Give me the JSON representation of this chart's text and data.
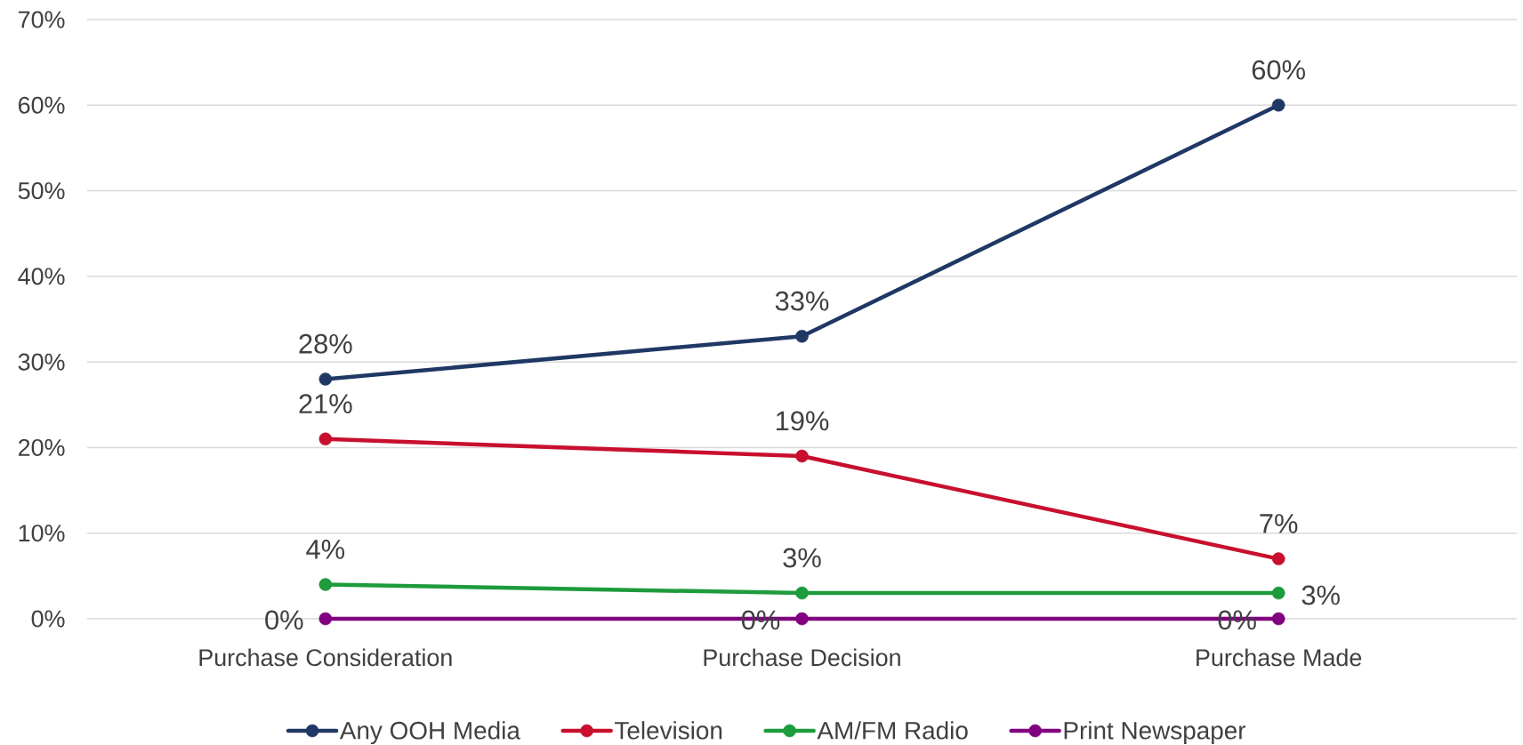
{
  "chart_data": {
    "type": "line",
    "categories": [
      "Purchase Consideration",
      "Purchase Decision",
      "Purchase Made"
    ],
    "series": [
      {
        "name": "Any OOH Media",
        "color": "#1f3864",
        "values": [
          28,
          33,
          60
        ],
        "value_labels": [
          "28%",
          "33%",
          "60%"
        ]
      },
      {
        "name": "Television",
        "color": "#c8102e",
        "values": [
          21,
          19,
          7
        ],
        "value_labels": [
          "21%",
          "19%",
          "7%"
        ]
      },
      {
        "name": "AM/FM Radio",
        "color": "#1e9b3c",
        "values": [
          4,
          3,
          3
        ],
        "value_labels": [
          "4%",
          "3%",
          "3%"
        ]
      },
      {
        "name": "Print Newspaper",
        "color": "#800080",
        "values": [
          0,
          0,
          0
        ],
        "value_labels": [
          "0%",
          "0%",
          "0%"
        ]
      }
    ],
    "ylim": [
      0,
      70
    ],
    "yticks": [
      {
        "value": 0,
        "label": "0%"
      },
      {
        "value": 10,
        "label": "10%"
      },
      {
        "value": 20,
        "label": "20%"
      },
      {
        "value": 30,
        "label": "30%"
      },
      {
        "value": 40,
        "label": "40%"
      },
      {
        "value": 50,
        "label": "50%"
      },
      {
        "value": 60,
        "label": "60%"
      },
      {
        "value": 70,
        "label": "70%"
      }
    ],
    "grid": "y",
    "legend": "bottom",
    "marker": "circle"
  }
}
